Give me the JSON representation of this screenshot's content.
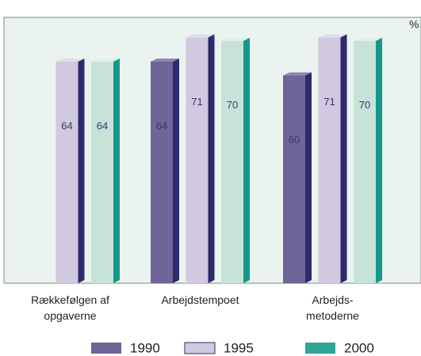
{
  "chart_data": {
    "type": "bar3d",
    "unit": "%",
    "categories": [
      "Rækkefølgen af\nopgaverne",
      "Arbejdstempoet",
      "Arbejds-\nmetoderne"
    ],
    "series": [
      {
        "name": "1990",
        "color": "#6f6598",
        "values": [
          null,
          64,
          60
        ]
      },
      {
        "name": "1995",
        "color": "#d0c9df",
        "values": [
          64,
          71,
          71
        ]
      },
      {
        "name": "2000",
        "color": "#2fa596",
        "values": [
          64,
          70,
          70
        ]
      }
    ],
    "ylim": [
      0,
      76.8
    ]
  }
}
